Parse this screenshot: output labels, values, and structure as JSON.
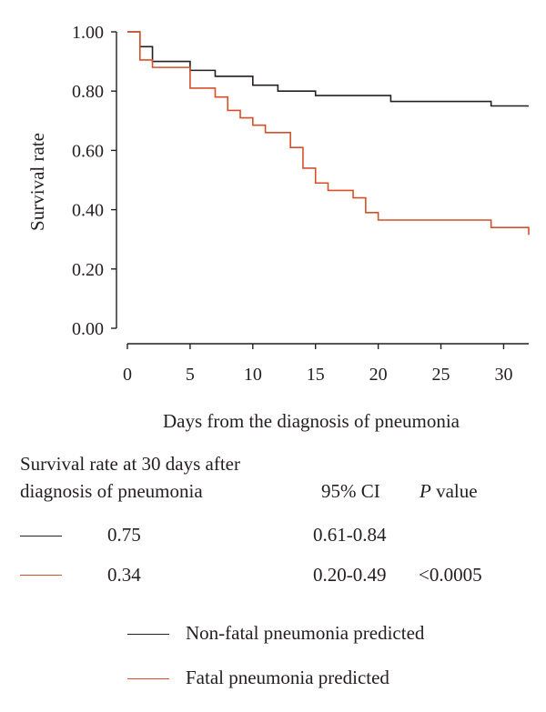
{
  "chart_data": {
    "type": "line",
    "xlabel": "Days from the diagnosis of pneumonia",
    "ylabel": "Survival rate",
    "xlim": [
      0,
      32
    ],
    "ylim": [
      0,
      1.0
    ],
    "x_ticks": [
      "0",
      "5",
      "10",
      "15",
      "20",
      "25",
      "30"
    ],
    "y_ticks": [
      "0.00",
      "0.20",
      "0.40",
      "0.60",
      "0.80",
      "1.00"
    ],
    "step": true,
    "series": [
      {
        "name": "Non-fatal pneumonia predicted",
        "color": "#231f20",
        "points": [
          [
            0,
            1.0
          ],
          [
            1,
            0.95
          ],
          [
            2,
            0.9
          ],
          [
            5,
            0.87
          ],
          [
            7,
            0.85
          ],
          [
            10,
            0.82
          ],
          [
            12,
            0.8
          ],
          [
            15,
            0.785
          ],
          [
            21,
            0.765
          ],
          [
            29,
            0.75
          ],
          [
            32,
            0.75
          ]
        ]
      },
      {
        "name": "Fatal pneumonia predicted",
        "color": "#d4502a",
        "points": [
          [
            0,
            1.0
          ],
          [
            1,
            0.905
          ],
          [
            2,
            0.88
          ],
          [
            5,
            0.81
          ],
          [
            7,
            0.78
          ],
          [
            8,
            0.735
          ],
          [
            9,
            0.71
          ],
          [
            10,
            0.685
          ],
          [
            11,
            0.66
          ],
          [
            13,
            0.61
          ],
          [
            14,
            0.54
          ],
          [
            15,
            0.49
          ],
          [
            16,
            0.465
          ],
          [
            18,
            0.44
          ],
          [
            19,
            0.39
          ],
          [
            20,
            0.365
          ],
          [
            29,
            0.34
          ],
          [
            32,
            0.315
          ]
        ]
      }
    ]
  },
  "table": {
    "heading_line1": "Survival rate at 30 days after",
    "heading_line2": "diagnosis of pneumonia",
    "ci_header": "95% CI",
    "p_header_italic": "P",
    "p_header_rest": " value",
    "rows": [
      {
        "value": "0.75",
        "ci": "0.61-0.84",
        "p": "",
        "color": "#231f20"
      },
      {
        "value": "0.34",
        "ci": "0.20-0.49",
        "p": "<0.0005",
        "color": "#d4502a"
      }
    ]
  },
  "legend": {
    "items": [
      {
        "label": "Non-fatal pneumonia predicted",
        "color": "#231f20"
      },
      {
        "label": "Fatal pneumonia predicted",
        "color": "#d4502a"
      }
    ]
  }
}
